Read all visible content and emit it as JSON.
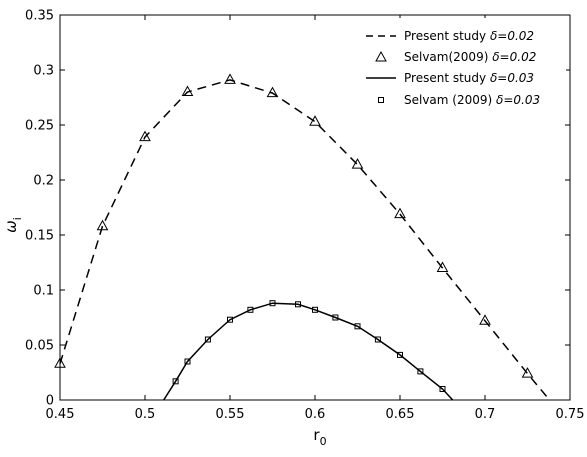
{
  "chart_data": {
    "type": "line",
    "title": "",
    "xlabel": "r",
    "xlabel_subscript": "0",
    "ylabel": "ω",
    "ylabel_subscript": "i",
    "xlim": [
      0.45,
      0.75
    ],
    "ylim": [
      0,
      0.35
    ],
    "xticks": [
      "0.45",
      "0.5",
      "0.55",
      "0.6",
      "0.65",
      "0.7",
      "0.75"
    ],
    "yticks": [
      "0",
      "0.05",
      "0.1",
      "0.15",
      "0.2",
      "0.25",
      "0.3",
      "0.35"
    ],
    "grid": false,
    "legend_position": "top-right",
    "series": [
      {
        "name": "Present study",
        "delta_label": "δ=0.02",
        "style": "dashed",
        "color": "#000000",
        "x": [
          0.45,
          0.475,
          0.5,
          0.525,
          0.55,
          0.575,
          0.6,
          0.625,
          0.65,
          0.675,
          0.7,
          0.725,
          0.738
        ],
        "y": [
          0.033,
          0.158,
          0.239,
          0.28,
          0.291,
          0.279,
          0.253,
          0.214,
          0.169,
          0.12,
          0.072,
          0.024,
          0.0
        ]
      },
      {
        "name": "Selvam(2009)",
        "delta_label": "δ=0.02",
        "style": "triangle-markers",
        "color": "#000000",
        "x": [
          0.45,
          0.475,
          0.5,
          0.525,
          0.55,
          0.575,
          0.6,
          0.625,
          0.65,
          0.675,
          0.7,
          0.725
        ],
        "y": [
          0.033,
          0.158,
          0.239,
          0.28,
          0.291,
          0.279,
          0.253,
          0.214,
          0.169,
          0.12,
          0.072,
          0.024
        ]
      },
      {
        "name": "Present study",
        "delta_label": "δ=0.03",
        "style": "solid",
        "color": "#000000",
        "x": [
          0.511,
          0.518,
          0.525,
          0.537,
          0.55,
          0.562,
          0.575,
          0.59,
          0.6,
          0.612,
          0.625,
          0.637,
          0.65,
          0.662,
          0.675,
          0.681
        ],
        "y": [
          0.0,
          0.017,
          0.035,
          0.055,
          0.073,
          0.082,
          0.088,
          0.087,
          0.082,
          0.075,
          0.067,
          0.055,
          0.041,
          0.026,
          0.01,
          0.0
        ]
      },
      {
        "name": "Selvam (2009)",
        "delta_label": "δ=0.03",
        "style": "square-markers",
        "color": "#000000",
        "x": [
          0.518,
          0.525,
          0.537,
          0.55,
          0.562,
          0.575,
          0.59,
          0.6,
          0.612,
          0.625,
          0.637,
          0.65,
          0.662,
          0.675
        ],
        "y": [
          0.017,
          0.035,
          0.055,
          0.073,
          0.082,
          0.088,
          0.087,
          0.082,
          0.075,
          0.067,
          0.055,
          0.041,
          0.026,
          0.01
        ]
      }
    ]
  }
}
